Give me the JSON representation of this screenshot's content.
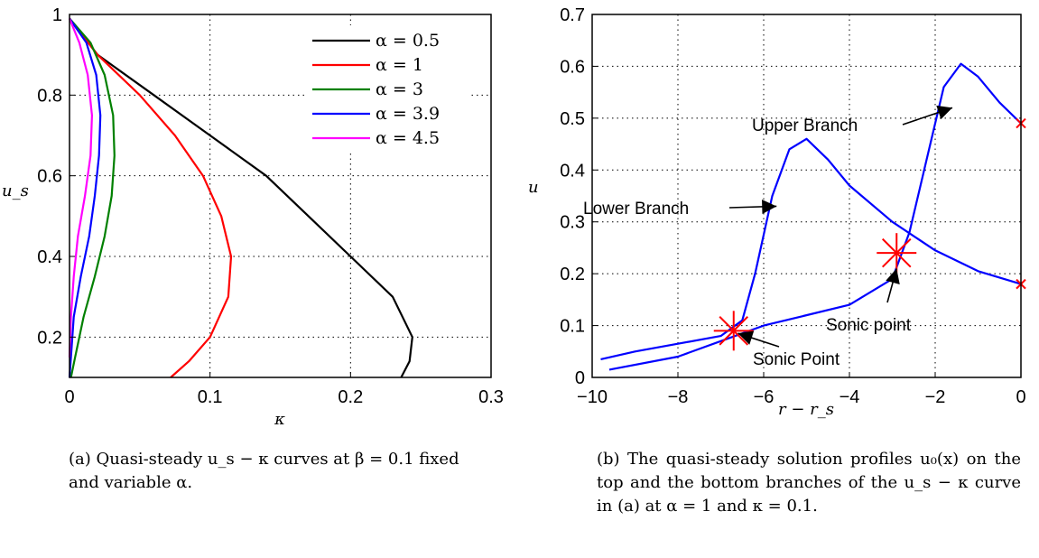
{
  "chart_data": [
    {
      "type": "line",
      "xlabel": "κ",
      "ylabel": "u_s",
      "xlim": [
        0,
        0.3
      ],
      "ylim": [
        0.1,
        1
      ],
      "xticks": [
        "0",
        "0.1",
        "0.2",
        "0.3"
      ],
      "yticks": [
        "0.2",
        "0.4",
        "0.6",
        "0.8",
        "1"
      ],
      "grid": true,
      "legend_position": "top-right",
      "series": [
        {
          "name": "α = 0.5",
          "color": "#000000",
          "points": [
            [
              0,
              0.99
            ],
            [
              0.02,
              0.9
            ],
            [
              0.06,
              0.8
            ],
            [
              0.1,
              0.7
            ],
            [
              0.14,
              0.6
            ],
            [
              0.17,
              0.5
            ],
            [
              0.2,
              0.4
            ],
            [
              0.23,
              0.3
            ],
            [
              0.244,
              0.2
            ],
            [
              0.242,
              0.14
            ],
            [
              0.236,
              0.1
            ]
          ]
        },
        {
          "name": "α = 1",
          "color": "#ff0000",
          "points": [
            [
              0,
              0.99
            ],
            [
              0.02,
              0.9
            ],
            [
              0.05,
              0.8
            ],
            [
              0.075,
              0.7
            ],
            [
              0.095,
              0.6
            ],
            [
              0.108,
              0.5
            ],
            [
              0.115,
              0.4
            ],
            [
              0.113,
              0.3
            ],
            [
              0.1,
              0.2
            ],
            [
              0.085,
              0.14
            ],
            [
              0.072,
              0.1
            ]
          ]
        },
        {
          "name": "α = 3",
          "color": "#008000",
          "points": [
            [
              0,
              0.99
            ],
            [
              0.015,
              0.93
            ],
            [
              0.025,
              0.85
            ],
            [
              0.031,
              0.75
            ],
            [
              0.032,
              0.65
            ],
            [
              0.03,
              0.55
            ],
            [
              0.025,
              0.45
            ],
            [
              0.018,
              0.35
            ],
            [
              0.01,
              0.25
            ],
            [
              0.004,
              0.15
            ],
            [
              0.001,
              0.1
            ]
          ]
        },
        {
          "name": "α = 3.9",
          "color": "#0000ff",
          "points": [
            [
              0,
              0.99
            ],
            [
              0.012,
              0.93
            ],
            [
              0.019,
              0.85
            ],
            [
              0.022,
              0.75
            ],
            [
              0.021,
              0.65
            ],
            [
              0.018,
              0.55
            ],
            [
              0.014,
              0.45
            ],
            [
              0.008,
              0.35
            ],
            [
              0.003,
              0.25
            ],
            [
              0.001,
              0.15
            ],
            [
              0,
              0.1
            ]
          ]
        },
        {
          "name": "α = 4.5",
          "color": "#ff00ff",
          "points": [
            [
              0,
              0.99
            ],
            [
              0.007,
              0.93
            ],
            [
              0.013,
              0.85
            ],
            [
              0.016,
              0.75
            ],
            [
              0.015,
              0.65
            ],
            [
              0.011,
              0.55
            ],
            [
              0.006,
              0.45
            ],
            [
              0.003,
              0.35
            ],
            [
              0.001,
              0.25
            ],
            [
              0,
              0.15
            ]
          ]
        }
      ],
      "caption": "(a) Quasi-steady u_s − κ curves at β = 0.1 fixed and variable α."
    },
    {
      "type": "line",
      "xlabel": "r − r_s",
      "ylabel": "u",
      "xlim": [
        -10,
        0
      ],
      "ylim": [
        0,
        0.7
      ],
      "xticks": [
        "−10",
        "−8",
        "−6",
        "−4",
        "−2",
        "0"
      ],
      "yticks": [
        "0",
        "0.1",
        "0.2",
        "0.3",
        "0.4",
        "0.5",
        "0.6",
        "0.7"
      ],
      "grid": true,
      "series": [
        {
          "color": "#0000ff",
          "points": [
            [
              -9.8,
              0.035
            ],
            [
              -9,
              0.05
            ],
            [
              -8,
              0.065
            ],
            [
              -7,
              0.08
            ],
            [
              -6.5,
              0.11
            ],
            [
              -6.2,
              0.2
            ],
            [
              -5.8,
              0.35
            ],
            [
              -5.4,
              0.44
            ],
            [
              -5,
              0.46
            ],
            [
              -4.5,
              0.42
            ],
            [
              -4,
              0.37
            ],
            [
              -3,
              0.3
            ],
            [
              -2,
              0.245
            ],
            [
              -1,
              0.205
            ],
            [
              0,
              0.18
            ]
          ]
        },
        {
          "color": "#0000ff",
          "points": [
            [
              -9.6,
              0.015
            ],
            [
              -8,
              0.04
            ],
            [
              -7,
              0.07
            ],
            [
              -6,
              0.1
            ],
            [
              -4,
              0.14
            ],
            [
              -3,
              0.19
            ],
            [
              -2.6,
              0.28
            ],
            [
              -2.2,
              0.42
            ],
            [
              -1.8,
              0.56
            ],
            [
              -1.4,
              0.605
            ],
            [
              -1,
              0.58
            ],
            [
              -0.5,
              0.53
            ],
            [
              0,
              0.49
            ]
          ]
        }
      ],
      "sonic_points": [
        [
          -6.7,
          0.09
        ],
        [
          -2.9,
          0.24
        ]
      ],
      "endpoint_markers": [
        [
          0,
          0.49
        ],
        [
          0,
          0.18
        ]
      ],
      "annotations": [
        {
          "text": "Upper Branch",
          "arrow_to": [
            -1.6,
            0.52
          ]
        },
        {
          "text": "Lower Branch",
          "arrow_to": [
            -5.7,
            0.33
          ]
        },
        {
          "text": "Sonic point",
          "arrow_to": [
            -2.9,
            0.21
          ]
        },
        {
          "text": "Sonic Point",
          "arrow_to": [
            -6.6,
            0.085
          ]
        }
      ],
      "caption": "(b) The quasi-steady solution profiles u₀(x) on the top and the bottom branches of the u_s − κ curve in (a) at α = 1 and κ = 0.1."
    }
  ]
}
